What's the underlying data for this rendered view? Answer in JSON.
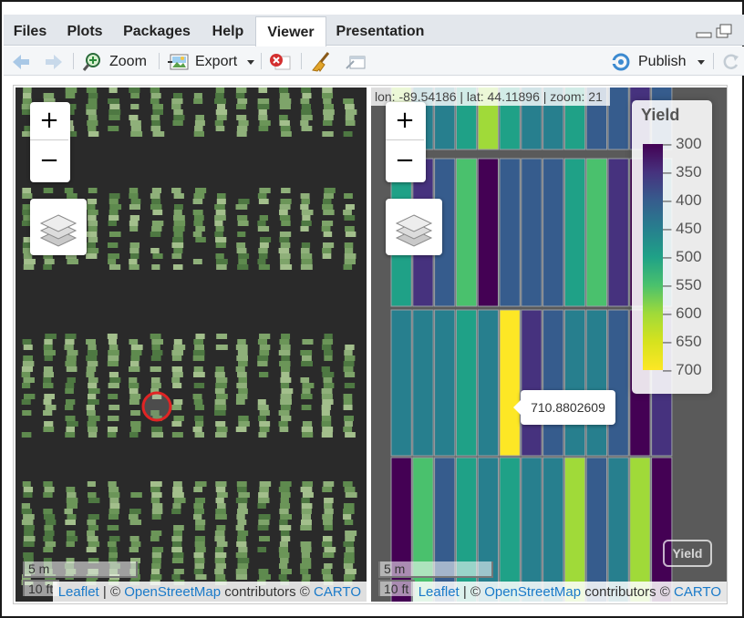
{
  "tabs": [
    {
      "label": "Files"
    },
    {
      "label": "Plots"
    },
    {
      "label": "Packages"
    },
    {
      "label": "Help"
    },
    {
      "label": "Viewer"
    },
    {
      "label": "Presentation"
    }
  ],
  "active_tab": "Viewer",
  "toolbar": {
    "zoom_label": "Zoom",
    "export_label": "Export",
    "publish_label": "Publish"
  },
  "icons": {
    "back": "back-arrow-icon",
    "forward": "forward-arrow-icon",
    "zoom": "magnifier-plus-icon",
    "export": "export-image-icon",
    "stop": "stop-x-icon",
    "clear": "broom-icon",
    "popout": "popout-window-icon",
    "publish": "publish-icon",
    "refresh": "refresh-icon"
  },
  "map_left": {
    "zoom_in": "+",
    "zoom_out": "−",
    "scale": {
      "top": "5 m",
      "bottom": "10 ft"
    },
    "attribution": {
      "leaflet": "Leaflet",
      "sep1": " | © ",
      "osm": "OpenStreetMap",
      "mid": " contributors © ",
      "carto": "CARTO"
    },
    "marker_color": "#e02424"
  },
  "map_right": {
    "zoom_in": "+",
    "zoom_out": "−",
    "coords": "lon: -89.54186 | lat: 44.11896 | zoom: 21",
    "legend_title": "Yield",
    "legend_ticks": [
      "300",
      "350",
      "400",
      "450",
      "500",
      "550",
      "600",
      "650",
      "700"
    ],
    "tooltip": "710.8802609",
    "layer_button": "Yield",
    "scale": {
      "top": "5 m",
      "bottom": "10 ft"
    },
    "attribution": {
      "leaflet": "Leaflet",
      "sep1": " | © ",
      "osm": "OpenStreetMap",
      "mid": " contributors © ",
      "carto": "CARTO"
    },
    "palette": [
      "#440154",
      "#46327e",
      "#365c8d",
      "#277f8e",
      "#1fa187",
      "#4ac16d",
      "#a0da39",
      "#d6e21e",
      "#fde725"
    ]
  }
}
